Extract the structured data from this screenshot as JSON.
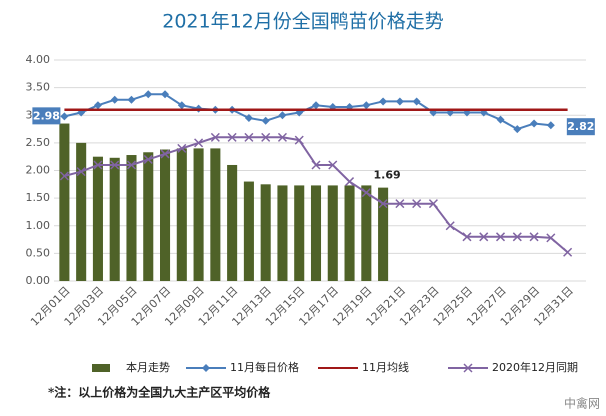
{
  "chart_data": {
    "type": "combo",
    "title": "2021年12月份全国鸭苗价格走势",
    "categories": [
      "12月01日",
      null,
      "12月03日",
      null,
      "12月05日",
      null,
      "12月07日",
      null,
      "12月09日",
      null,
      "12月11日",
      null,
      "12月13日",
      null,
      "12月15日",
      null,
      "12月17日",
      null,
      "12月19日",
      null,
      "12月21日",
      null,
      "12月23日",
      null,
      "12月25日",
      null,
      "12月27日",
      null,
      "12月29日",
      null,
      "12月31日"
    ],
    "ylim": [
      0,
      4
    ],
    "yticks": [
      {
        "value": 0,
        "label": "0.00"
      },
      {
        "value": 0.5,
        "label": "0.50"
      },
      {
        "value": 1,
        "label": "1.00"
      },
      {
        "value": 1.5,
        "label": "1.50"
      },
      {
        "value": 2,
        "label": "2.00"
      },
      {
        "value": 2.5,
        "label": "2.50"
      },
      {
        "value": 3,
        "label": "3.00"
      },
      {
        "value": 3.5,
        "label": "3.50"
      },
      {
        "value": 4,
        "label": "4.00"
      }
    ],
    "grid": true,
    "legend": "bottom",
    "series": [
      {
        "name": "本月走势",
        "type": "bar",
        "color": "#4f6228",
        "values": [
          2.85,
          2.5,
          2.25,
          2.23,
          2.28,
          2.33,
          2.38,
          2.4,
          2.4,
          2.4,
          2.1,
          1.8,
          1.75,
          1.73,
          1.73,
          1.73,
          1.73,
          1.73,
          1.73,
          1.69,
          null,
          null,
          null,
          null,
          null,
          null,
          null,
          null,
          null,
          null,
          null
        ],
        "value_labels": [
          null,
          null,
          null,
          null,
          null,
          null,
          null,
          null,
          null,
          null,
          null,
          null,
          null,
          null,
          null,
          null,
          null,
          null,
          null,
          "1.69",
          null,
          null,
          null,
          null,
          null,
          null,
          null,
          null,
          null,
          null,
          null
        ]
      },
      {
        "name": "11月每日价格",
        "type": "line",
        "marker": "diamond",
        "color": "#4a7ebb",
        "values": [
          2.98,
          3.05,
          3.18,
          3.28,
          3.28,
          3.38,
          3.38,
          3.18,
          3.12,
          3.1,
          3.1,
          2.95,
          2.9,
          3.0,
          3.05,
          3.18,
          3.15,
          3.15,
          3.18,
          3.25,
          3.25,
          3.25,
          3.05,
          3.05,
          3.05,
          3.05,
          2.92,
          2.75,
          2.85,
          2.82,
          null
        ],
        "value_labels": [
          "2.98",
          null,
          null,
          null,
          null,
          null,
          null,
          null,
          null,
          null,
          null,
          null,
          null,
          null,
          null,
          null,
          null,
          null,
          null,
          null,
          null,
          null,
          null,
          null,
          null,
          null,
          null,
          null,
          null,
          "2.82",
          null
        ]
      },
      {
        "name": "11月均线",
        "type": "line",
        "marker": "none",
        "color": "#a01818",
        "values": [
          3.1,
          3.1,
          3.1,
          3.1,
          3.1,
          3.1,
          3.1,
          3.1,
          3.1,
          3.1,
          3.1,
          3.1,
          3.1,
          3.1,
          3.1,
          3.1,
          3.1,
          3.1,
          3.1,
          3.1,
          3.1,
          3.1,
          3.1,
          3.1,
          3.1,
          3.1,
          3.1,
          3.1,
          3.1,
          3.1,
          3.1
        ]
      },
      {
        "name": "2020年12月同期",
        "type": "line",
        "marker": "x",
        "color": "#8064a2",
        "values": [
          1.9,
          1.98,
          2.1,
          2.1,
          2.1,
          2.2,
          2.3,
          2.4,
          2.5,
          2.6,
          2.6,
          2.6,
          2.6,
          2.6,
          2.55,
          2.1,
          2.1,
          1.8,
          1.6,
          1.4,
          1.4,
          1.4,
          1.4,
          1.0,
          0.8,
          0.8,
          0.8,
          0.8,
          0.8,
          0.78,
          0.52
        ]
      }
    ],
    "footnote": "*注：以上价格为全国九大主产区平均价格",
    "watermark": "中禽网"
  }
}
